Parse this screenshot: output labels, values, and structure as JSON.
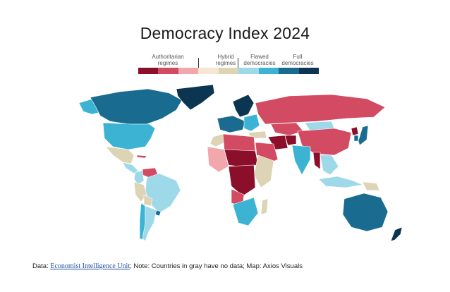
{
  "title": "Democracy Index 2024",
  "legend": {
    "categories": [
      {
        "label_line1": "Authoritarian",
        "label_line2": "regimes",
        "colors": [
          "#8b0e2a",
          "#d34b62",
          "#f2a7ad"
        ]
      },
      {
        "label_line1": "Hybrid",
        "label_line2": "regimes",
        "colors": [
          "#f6e6d3",
          "#ddd3b5"
        ]
      },
      {
        "label_line1": "Flawed",
        "label_line2": "democracies",
        "colors": [
          "#9dd9e8",
          "#3db3d4"
        ]
      },
      {
        "label_line1": "Full",
        "label_line2": "democracies",
        "colors": [
          "#196b90",
          "#0b3550"
        ]
      }
    ]
  },
  "map_regions": [
    {
      "name": "Canada",
      "color": "#196b90"
    },
    {
      "name": "United States",
      "color": "#3db3d4"
    },
    {
      "name": "Alaska",
      "color": "#3db3d4"
    },
    {
      "name": "Greenland",
      "color": "#0b3550"
    },
    {
      "name": "Mexico",
      "color": "#ddd3b5"
    },
    {
      "name": "Central America",
      "color": "#9dd9e8"
    },
    {
      "name": "Cuba",
      "color": "#d34b62"
    },
    {
      "name": "Venezuela",
      "color": "#d34b62"
    },
    {
      "name": "Colombia",
      "color": "#9dd9e8"
    },
    {
      "name": "Brazil",
      "color": "#9dd9e8"
    },
    {
      "name": "Peru",
      "color": "#ddd3b5"
    },
    {
      "name": "Bolivia",
      "color": "#ddd3b5"
    },
    {
      "name": "Argentina",
      "color": "#9dd9e8"
    },
    {
      "name": "Chile",
      "color": "#3db3d4"
    },
    {
      "name": "Uruguay",
      "color": "#196b90"
    },
    {
      "name": "Europe West",
      "color": "#196b90"
    },
    {
      "name": "Scandinavia",
      "color": "#0b3550"
    },
    {
      "name": "Eastern Europe",
      "color": "#3db3d4"
    },
    {
      "name": "Russia",
      "color": "#d34b62"
    },
    {
      "name": "Kazakhstan",
      "color": "#d34b62"
    },
    {
      "name": "Mongolia",
      "color": "#9dd9e8"
    },
    {
      "name": "China",
      "color": "#d34b62"
    },
    {
      "name": "Afghanistan",
      "color": "#8b0e2a"
    },
    {
      "name": "Iran",
      "color": "#8b0e2a"
    },
    {
      "name": "Saudi Arabia",
      "color": "#d34b62"
    },
    {
      "name": "Turkey",
      "color": "#ddd3b5"
    },
    {
      "name": "India",
      "color": "#3db3d4"
    },
    {
      "name": "Myanmar",
      "color": "#8b0e2a"
    },
    {
      "name": "Southeast Asia",
      "color": "#9dd9e8"
    },
    {
      "name": "Japan",
      "color": "#196b90"
    },
    {
      "name": "South Korea",
      "color": "#196b90"
    },
    {
      "name": "North Korea",
      "color": "#8b0e2a"
    },
    {
      "name": "Indonesia",
      "color": "#9dd9e8"
    },
    {
      "name": "Papua New Guinea",
      "color": "#ddd3b5"
    },
    {
      "name": "Australia",
      "color": "#196b90"
    },
    {
      "name": "New Zealand",
      "color": "#0b3550"
    },
    {
      "name": "North Africa",
      "color": "#d34b62"
    },
    {
      "name": "Morocco",
      "color": "#ddd3b5"
    },
    {
      "name": "Sahel",
      "color": "#8b0e2a"
    },
    {
      "name": "West Africa",
      "color": "#f2a7ad"
    },
    {
      "name": "Central Africa",
      "color": "#8b0e2a"
    },
    {
      "name": "East Africa",
      "color": "#ddd3b5"
    },
    {
      "name": "Southern Africa",
      "color": "#3db3d4"
    },
    {
      "name": "Angola",
      "color": "#d34b62"
    },
    {
      "name": "Madagascar",
      "color": "#ddd3b5"
    }
  ],
  "footer": {
    "prefix": "Data: ",
    "link": "Economist Intelligence Unit",
    "suffix": "; Note: Countries in gray have no data; Map: Axios Visuals"
  }
}
